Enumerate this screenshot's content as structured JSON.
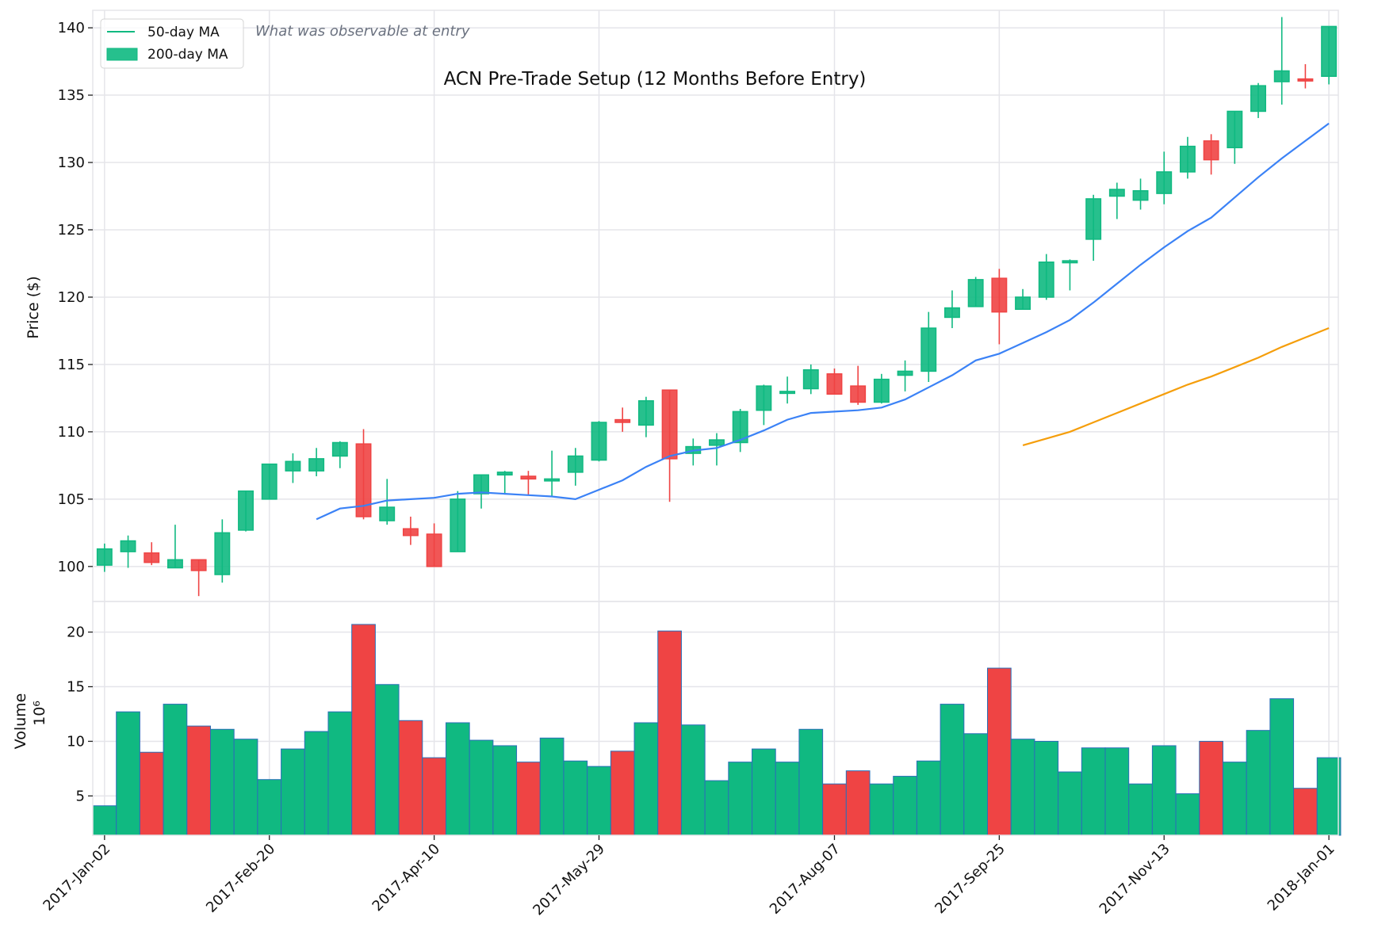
{
  "chart_data": {
    "type": "candlestick",
    "title": "ACN Pre-Trade Setup (12 Months Before Entry)",
    "annotation": "What was observable at entry",
    "price_panel": {
      "ylabel": "Price ($)",
      "ylim": [
        97.4,
        141.3
      ],
      "yticks": [
        100,
        105,
        110,
        115,
        120,
        125,
        130,
        135,
        140
      ],
      "grid": true
    },
    "volume_panel": {
      "ylabel": "Volume",
      "offset_label": "10⁶",
      "ylim": [
        1.4,
        22.8
      ],
      "yticks": [
        5,
        10,
        15,
        20
      ],
      "grid": true
    },
    "xlim": [
      -0.5,
      52.4
    ],
    "xticks": [
      {
        "index": 0,
        "label": "2017-Jan-02"
      },
      {
        "index": 7,
        "label": "2017-Feb-20"
      },
      {
        "index": 14,
        "label": "2017-Apr-10"
      },
      {
        "index": 21,
        "label": "2017-May-29"
      },
      {
        "index": 31,
        "label": "2017-Aug-07"
      },
      {
        "index": 38,
        "label": "2017-Sep-25"
      },
      {
        "index": 45,
        "label": "2017-Nov-13"
      },
      {
        "index": 52,
        "label": "2018-Jan-01"
      }
    ],
    "legend": {
      "placement": "top-left",
      "entries": [
        {
          "label": "50-day MA",
          "marker": "line"
        },
        {
          "label": "200-day MA",
          "marker": "patch"
        }
      ]
    },
    "colors": {
      "up": "#10b981",
      "down": "#ef4444",
      "ma50": "#3b82f6",
      "ma200": "#f59e0b",
      "volume_edge": "#2a6fb8",
      "grid": "#e5e5ea"
    },
    "ohlc": [
      [
        100.1,
        101.7,
        99.6,
        101.3
      ],
      [
        101.1,
        102.3,
        99.9,
        101.9
      ],
      [
        101.0,
        101.8,
        100.1,
        100.3
      ],
      [
        99.9,
        103.1,
        99.9,
        100.5
      ],
      [
        100.5,
        100.5,
        97.8,
        99.7
      ],
      [
        99.4,
        103.5,
        98.8,
        102.5
      ],
      [
        102.7,
        105.6,
        102.6,
        105.6
      ],
      [
        105.0,
        107.6,
        105.0,
        107.6
      ],
      [
        107.1,
        108.4,
        106.2,
        107.8
      ],
      [
        107.1,
        108.8,
        106.7,
        108.0
      ],
      [
        108.2,
        109.3,
        107.3,
        109.2
      ],
      [
        109.1,
        110.2,
        103.5,
        103.7
      ],
      [
        103.4,
        106.5,
        103.1,
        104.4
      ],
      [
        102.8,
        103.7,
        101.6,
        102.3
      ],
      [
        102.4,
        103.2,
        100.0,
        100.0
      ],
      [
        101.1,
        105.6,
        101.1,
        105.0
      ],
      [
        105.4,
        106.8,
        104.3,
        106.8
      ],
      [
        106.8,
        107.1,
        105.4,
        107.0
      ],
      [
        106.7,
        107.1,
        105.3,
        106.5
      ],
      [
        106.4,
        108.6,
        105.2,
        106.5
      ],
      [
        107.0,
        108.8,
        106.0,
        108.2
      ],
      [
        107.9,
        110.8,
        107.8,
        110.7
      ],
      [
        110.9,
        111.8,
        110.0,
        110.7
      ],
      [
        110.5,
        112.6,
        109.6,
        112.3
      ],
      [
        113.1,
        113.1,
        104.8,
        108.0
      ],
      [
        108.4,
        109.5,
        107.5,
        108.9
      ],
      [
        109.0,
        109.9,
        107.5,
        109.4
      ],
      [
        109.2,
        111.7,
        108.5,
        111.5
      ],
      [
        111.6,
        113.5,
        110.5,
        113.4
      ],
      [
        112.9,
        114.1,
        112.1,
        113.0
      ],
      [
        113.2,
        115.0,
        112.8,
        114.6
      ],
      [
        114.3,
        114.7,
        112.8,
        112.8
      ],
      [
        113.4,
        114.9,
        112.0,
        112.2
      ],
      [
        112.2,
        114.3,
        112.1,
        113.9
      ],
      [
        114.2,
        115.3,
        113.0,
        114.5
      ],
      [
        114.5,
        118.9,
        113.7,
        117.7
      ],
      [
        118.5,
        120.5,
        117.7,
        119.2
      ],
      [
        119.3,
        121.5,
        119.3,
        121.3
      ],
      [
        121.4,
        122.1,
        116.5,
        118.9
      ],
      [
        119.1,
        120.6,
        119.1,
        120.0
      ],
      [
        120.0,
        123.2,
        119.8,
        122.6
      ],
      [
        122.7,
        122.8,
        120.5,
        122.7
      ],
      [
        124.3,
        127.6,
        122.7,
        127.3
      ],
      [
        127.5,
        128.5,
        125.8,
        128.0
      ],
      [
        127.2,
        128.8,
        126.5,
        127.9
      ],
      [
        127.7,
        130.8,
        126.9,
        129.3
      ],
      [
        129.3,
        131.9,
        128.8,
        131.2
      ],
      [
        131.6,
        132.1,
        129.1,
        130.2
      ],
      [
        131.1,
        133.8,
        129.9,
        133.8
      ],
      [
        133.8,
        135.9,
        133.3,
        135.7
      ],
      [
        136.0,
        140.8,
        134.3,
        136.8
      ],
      [
        136.2,
        137.3,
        135.5,
        136.1
      ],
      [
        136.4,
        140.1,
        135.8,
        140.1
      ]
    ],
    "volume": [
      4.1,
      12.7,
      9.0,
      13.4,
      11.4,
      11.1,
      10.2,
      6.5,
      9.3,
      10.9,
      12.7,
      20.7,
      15.2,
      11.9,
      8.5,
      11.7,
      10.1,
      9.6,
      8.1,
      10.3,
      8.2,
      7.7,
      9.1,
      11.7,
      20.1,
      11.5,
      6.4,
      8.1,
      9.3,
      8.1,
      11.1,
      6.1,
      7.3,
      6.1,
      6.8,
      8.2,
      13.4,
      10.7,
      16.7,
      10.2,
      10.0,
      7.2,
      9.4,
      9.4,
      6.1,
      9.6,
      5.2,
      10.0,
      8.1,
      11.0,
      13.9,
      5.7,
      8.5
    ],
    "ma50": {
      "start_index": 9,
      "values": [
        103.5,
        104.3,
        104.5,
        104.9,
        105.0,
        105.1,
        105.4,
        105.5,
        105.4,
        105.3,
        105.2,
        105.0,
        105.7,
        106.4,
        107.4,
        108.2,
        108.6,
        108.8,
        109.4,
        110.1,
        110.9,
        111.4,
        111.5,
        111.6,
        111.8,
        112.4,
        113.3,
        114.2,
        115.3,
        115.8,
        116.6,
        117.4,
        118.3,
        119.6,
        121.0,
        122.4,
        123.7,
        124.9,
        125.9,
        127.4,
        128.9,
        130.3,
        131.6,
        132.9
      ]
    },
    "ma200": {
      "start_index": 39,
      "values": [
        109.0,
        109.5,
        110.0,
        110.7,
        111.4,
        112.1,
        112.8,
        113.5,
        114.1,
        114.8,
        115.5,
        116.3,
        117.0,
        117.7
      ]
    }
  }
}
